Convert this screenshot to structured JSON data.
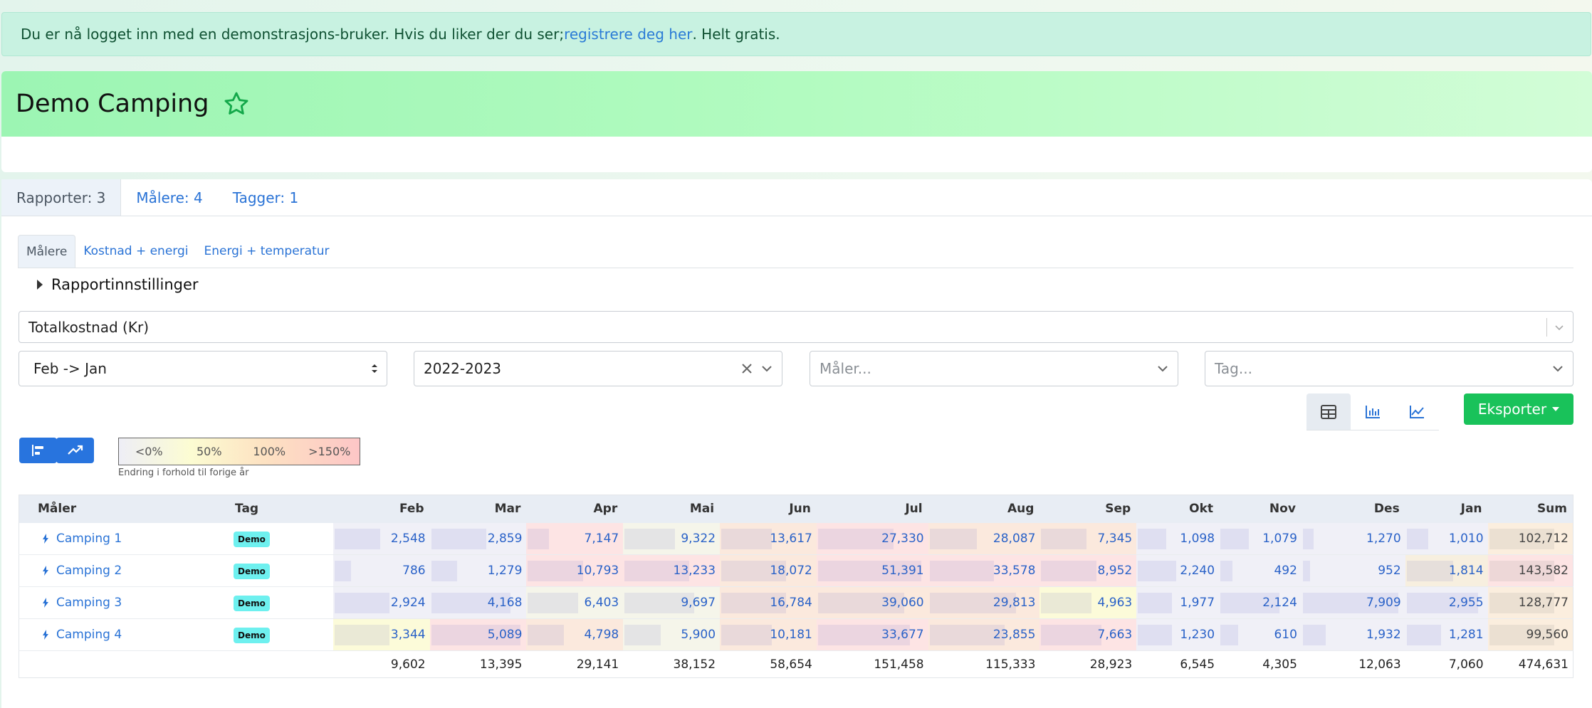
{
  "alert": {
    "text_before": "Du er nå logget inn med en demonstrasjons-bruker. Hvis du liker der du ser; ",
    "link": "registrere deg her",
    "text_after": ". Helt gratis."
  },
  "site": {
    "title": "Demo Camping"
  },
  "tabs_top": [
    "Rapporter: 3",
    "Målere: 4",
    "Tagger: 1"
  ],
  "tabs_sub": [
    "Målere",
    "Kostnad + energi",
    "Energi + temperatur"
  ],
  "settings_label": "Rapportinnstillinger",
  "filters": {
    "metric": "Totalkostnad (Kr)",
    "period": "Feb -> Jan",
    "years": "2022-2023",
    "meter_placeholder": "Måler...",
    "tag_placeholder": "Tag..."
  },
  "export_label": "Eksporter",
  "legend": {
    "items": [
      "<0%",
      "50%",
      "100%",
      ">150%"
    ],
    "caption": "Endring i forhold til forige år"
  },
  "table": {
    "headers": [
      "Måler",
      "Tag",
      "Feb",
      "Mar",
      "Apr",
      "Mai",
      "Jun",
      "Jul",
      "Aug",
      "Sep",
      "Okt",
      "Nov",
      "Des",
      "Jan",
      "Sum"
    ],
    "rows": [
      {
        "name": "Camping 1",
        "tag": "Demo",
        "values": [
          "2,548",
          "2,859",
          "7,147",
          "9,322",
          "13,617",
          "27,330",
          "28,087",
          "7,345",
          "1,098",
          "1,079",
          "1,270",
          "1,010"
        ],
        "sum": "102,712",
        "bars": [
          0.5,
          0.6,
          0.25,
          0.55,
          0.55,
          0.7,
          0.45,
          0.5,
          0.38,
          0.38,
          0.13,
          0.3
        ],
        "tints": [
          "#f0f0f7",
          "#f0f0f7",
          "#fde4e4",
          "#f5f5ea",
          "#fbe9dd",
          "#fde4e4",
          "#fbe9dd",
          "#fbe9dd",
          "#f0f0f7",
          "#f0f0f7",
          "#f0f0f7",
          "#f0f0f7"
        ],
        "sum_tint": "#fbeede"
      },
      {
        "name": "Camping 2",
        "tag": "Demo",
        "values": [
          "786",
          "1,279",
          "10,793",
          "13,233",
          "18,072",
          "51,391",
          "33,578",
          "8,952",
          "2,240",
          "492",
          "952",
          "1,814"
        ],
        "sum": "143,582",
        "bars": [
          0.2,
          0.3,
          0.6,
          0.7,
          0.7,
          0.95,
          0.6,
          0.6,
          0.5,
          0.18,
          0.1,
          0.6
        ],
        "tints": [
          "#f0f0f7",
          "#f0f0f7",
          "#fde4e4",
          "#fde4e4",
          "#fbe9dd",
          "#fde4e4",
          "#fde4e4",
          "#fde4e4",
          "#f0f0f7",
          "#f0f0f7",
          "#f0f0f7",
          "#f7efdf"
        ],
        "sum_tint": "#fde4e4"
      },
      {
        "name": "Camping 3",
        "tag": "Demo",
        "values": [
          "2,924",
          "4,168",
          "6,403",
          "9,697",
          "16,784",
          "39,060",
          "29,813",
          "4,963",
          "1,977",
          "2,124",
          "7,909",
          "2,955"
        ],
        "sum": "128,777",
        "bars": [
          0.6,
          0.85,
          0.55,
          0.75,
          0.7,
          0.8,
          0.8,
          0.55,
          0.45,
          0.75,
          0.95,
          0.9
        ],
        "tints": [
          "#f0f0f7",
          "#f0f0f7",
          "#f5f5ea",
          "#f5f5ea",
          "#fbe9dd",
          "#fbe9dd",
          "#fbe9dd",
          "#fcfbd9",
          "#f0f0f7",
          "#f0f0f7",
          "#f0f0f7",
          "#f0f0f7"
        ],
        "sum_tint": "#fbeede"
      },
      {
        "name": "Camping 4",
        "tag": "Demo",
        "values": [
          "3,344",
          "5,089",
          "4,798",
          "5,900",
          "10,181",
          "33,677",
          "23,855",
          "7,663",
          "1,230",
          "610",
          "1,932",
          "1,281"
        ],
        "sum": "99,560",
        "bars": [
          0.6,
          0.95,
          0.4,
          0.4,
          0.55,
          0.85,
          0.7,
          0.65,
          0.45,
          0.25,
          0.25,
          0.45
        ],
        "tints": [
          "#fcfbd9",
          "#fde4e4",
          "#fbe9dd",
          "#f5f5ea",
          "#fbe9dd",
          "#fde4e4",
          "#fbe9dd",
          "#fde4e4",
          "#f0f0f7",
          "#f0f0f7",
          "#f0f0f7",
          "#f0f0f7"
        ],
        "sum_tint": "#fbeede"
      }
    ],
    "totals": [
      "9,602",
      "13,395",
      "29,141",
      "38,152",
      "58,654",
      "151,458",
      "115,333",
      "28,923",
      "6,545",
      "4,305",
      "12,063",
      "7,060",
      "474,631"
    ]
  }
}
